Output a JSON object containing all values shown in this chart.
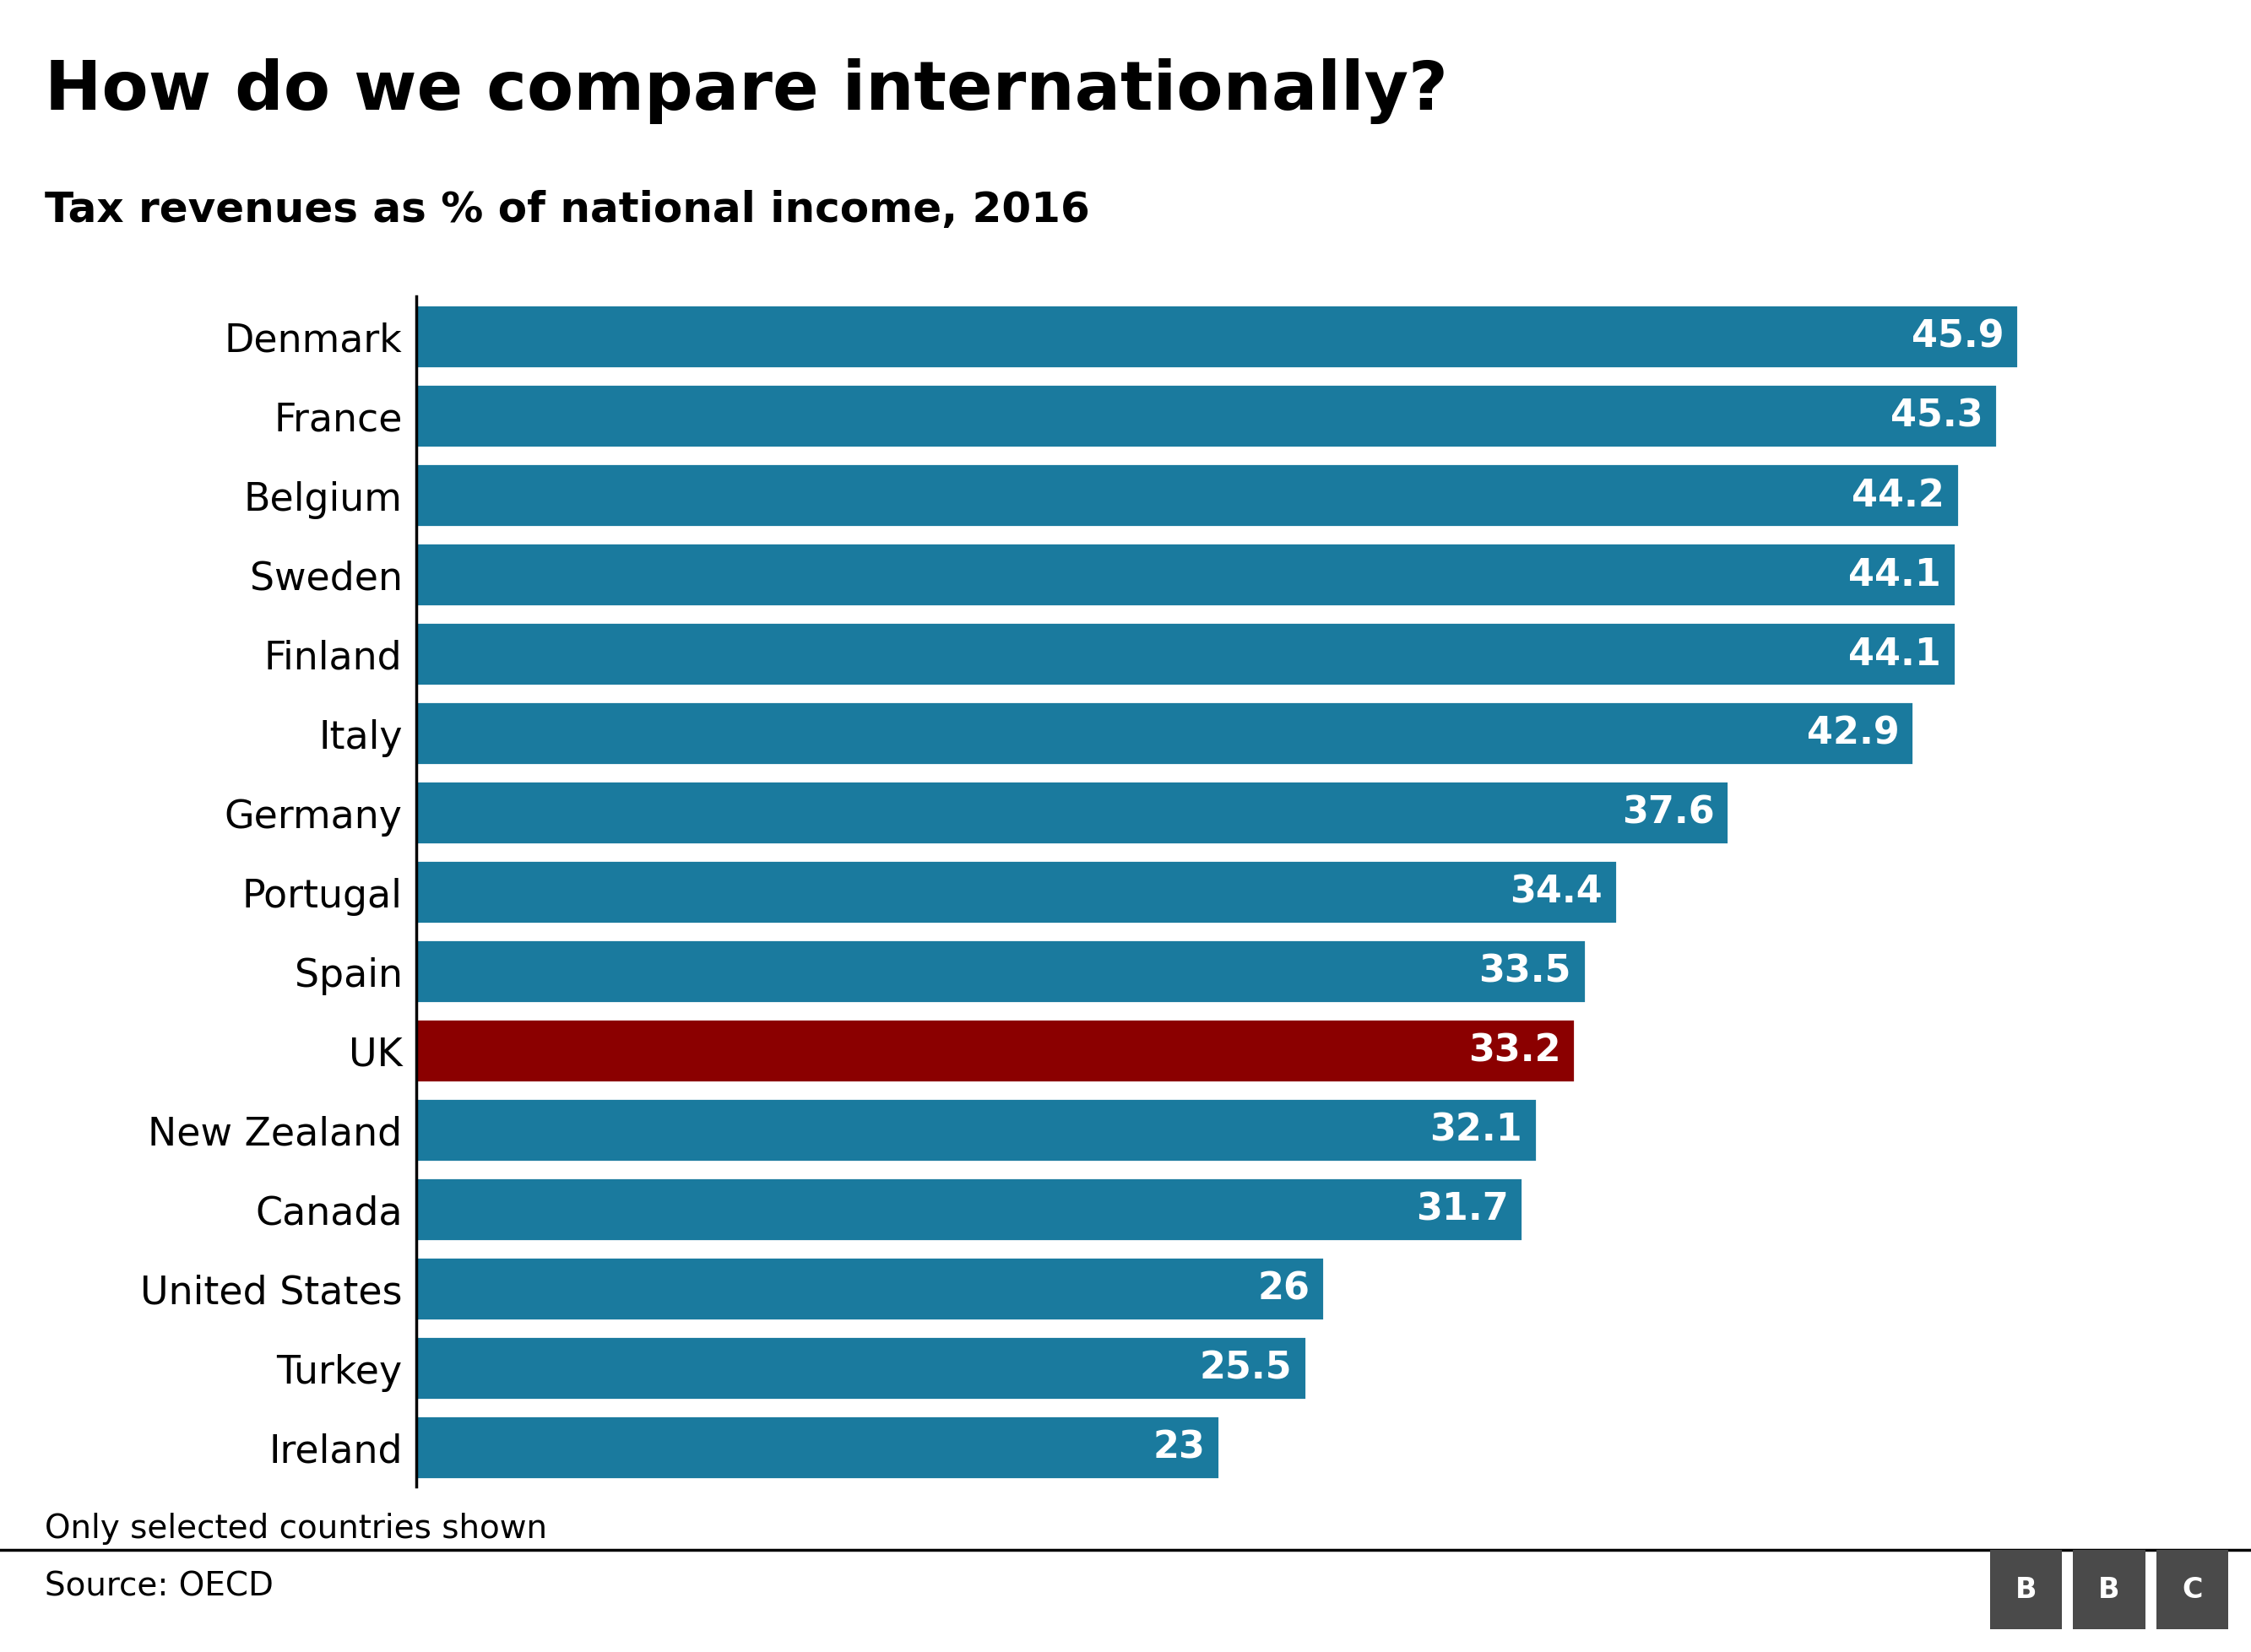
{
  "title": "How do we compare internationally?",
  "subtitle": "Tax revenues as % of national income, 2016",
  "countries": [
    "Denmark",
    "France",
    "Belgium",
    "Sweden",
    "Finland",
    "Italy",
    "Germany",
    "Portugal",
    "Spain",
    "UK",
    "New Zealand",
    "Canada",
    "United States",
    "Turkey",
    "Ireland"
  ],
  "values": [
    45.9,
    45.3,
    44.2,
    44.1,
    44.1,
    42.9,
    37.6,
    34.4,
    33.5,
    33.2,
    32.1,
    31.7,
    26.0,
    25.5,
    23.0
  ],
  "bar_color_default": "#1a7a9e",
  "bar_color_uk": "#8b0000",
  "label_color": "#ffffff",
  "background_color": "#ffffff",
  "title_fontsize": 58,
  "subtitle_fontsize": 36,
  "label_fontsize": 32,
  "tick_fontsize": 33,
  "footer_fontsize": 28,
  "xlim": [
    0,
    50
  ],
  "footnote": "Only selected countries shown",
  "source": "Source: OECD",
  "bbc_letters": [
    "B",
    "B",
    "C"
  ]
}
